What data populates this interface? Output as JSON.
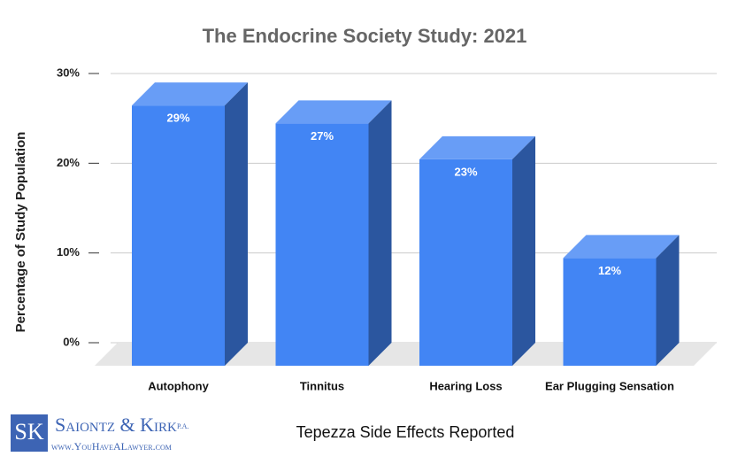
{
  "chart_data": {
    "type": "bar3d",
    "title": "The Endocrine Society Study: 2021",
    "x_label": "Tepezza Side Effects Reported",
    "y_label": "Percentage of Study Population",
    "categories": [
      "Autophony",
      "Tinnitus",
      "Hearing Loss",
      "Ear Plugging Sensation"
    ],
    "values": [
      29,
      27,
      23,
      12
    ],
    "value_labels": [
      "29%",
      "27%",
      "23%",
      "12%"
    ],
    "color": "#4285f4",
    "ylim": [
      0,
      30
    ],
    "yticks": [
      {
        "value": 0,
        "label": "0%"
      },
      {
        "value": 10,
        "label": "10%"
      },
      {
        "value": 20,
        "label": "20%"
      },
      {
        "value": 30,
        "label": "30%"
      }
    ],
    "grid": true
  },
  "logo": {
    "mark": "SK",
    "name": "Saiontz & Kirk",
    "suffix": "P.A.",
    "url": "www.YouHaveALawyer.com"
  }
}
